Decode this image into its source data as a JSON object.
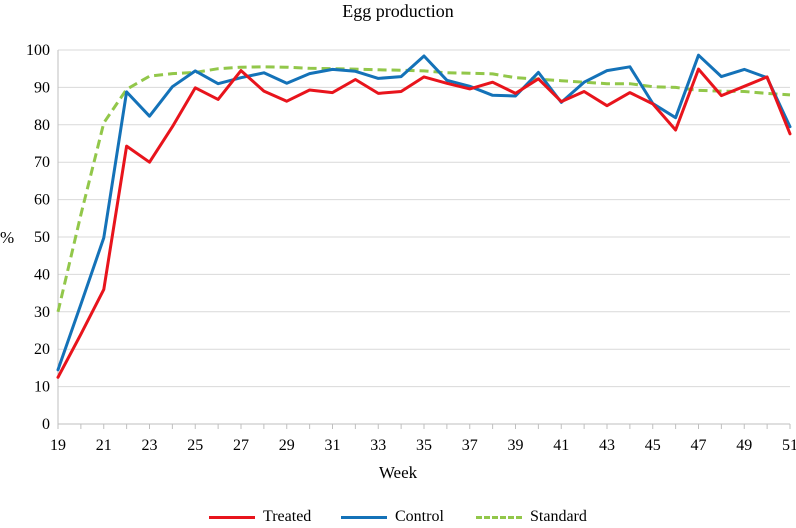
{
  "chart_data": {
    "type": "line",
    "title": "Egg production",
    "xlabel": "Week",
    "ylabel": "%",
    "xlim": [
      19,
      51
    ],
    "ylim": [
      0,
      100
    ],
    "xticks": [
      "19",
      "21",
      "23",
      "25",
      "27",
      "29",
      "31",
      "33",
      "35",
      "37",
      "39",
      "41",
      "43",
      "45",
      "47",
      "49",
      "51"
    ],
    "yticks": [
      "0",
      "10",
      "20",
      "30",
      "40",
      "50",
      "60",
      "70",
      "80",
      "90",
      "100"
    ],
    "grid": "horizontal",
    "legend_position": "bottom",
    "x": [
      19,
      20,
      21,
      22,
      23,
      24,
      25,
      26,
      27,
      28,
      29,
      30,
      31,
      32,
      33,
      34,
      35,
      36,
      37,
      38,
      39,
      40,
      41,
      42,
      43,
      44,
      45,
      46,
      47,
      48,
      49,
      50,
      51
    ],
    "series": [
      {
        "name": "Treated",
        "color": "#e8141c",
        "style": "solid",
        "values": [
          12.5,
          24,
          36,
          74.3,
          70,
          79.5,
          89.9,
          86.8,
          94.5,
          89,
          86.3,
          89.3,
          88.6,
          92.1,
          88.4,
          88.9,
          92.8,
          91.1,
          89.6,
          91.4,
          88.4,
          92.3,
          86.2,
          88.9,
          85.1,
          88.6,
          85.6,
          78.6,
          94.9,
          87.8,
          90.3,
          92.8,
          77.6
        ]
      },
      {
        "name": "Control",
        "color": "#1472b8",
        "style": "solid",
        "values": [
          14.5,
          32,
          49.8,
          88.8,
          82.3,
          90.2,
          94.4,
          91,
          92.6,
          93.9,
          91.1,
          93.7,
          94.8,
          94.3,
          92.4,
          92.9,
          98.4,
          91.9,
          90.3,
          87.9,
          87.7,
          94,
          86,
          91.4,
          94.5,
          95.5,
          85.7,
          81.9,
          98.6,
          92.9,
          94.8,
          92.6,
          79.5
        ]
      },
      {
        "name": "Standard",
        "color": "#92c74a",
        "style": "dashed",
        "values": [
          30,
          56,
          80.5,
          89.5,
          93,
          93.7,
          94,
          95,
          95.4,
          95.5,
          95.4,
          95.1,
          95,
          94.9,
          94.7,
          94.6,
          94.4,
          93.9,
          93.8,
          93.6,
          92.6,
          92.2,
          91.8,
          91.4,
          91,
          91,
          90.2,
          90,
          89.2,
          89,
          88.9,
          88.4,
          88
        ]
      }
    ]
  }
}
